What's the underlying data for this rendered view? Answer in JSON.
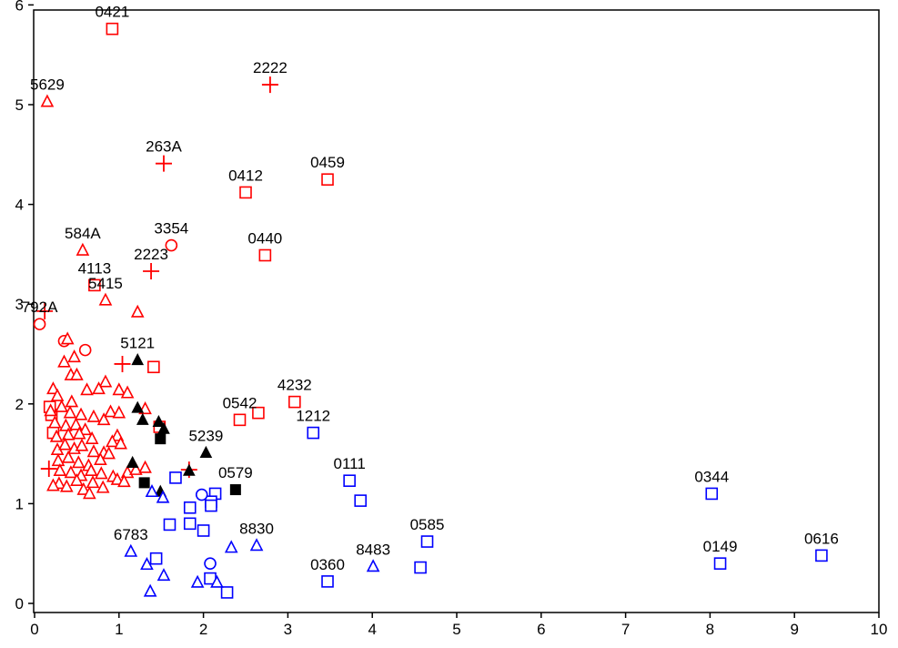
{
  "chart_data": {
    "type": "scatter",
    "title": "",
    "xlabel": "",
    "ylabel": "",
    "xlim": [
      0,
      10
    ],
    "ylim": [
      0,
      6
    ],
    "grid": false,
    "x_ticks": [
      0,
      1,
      2,
      3,
      4,
      5,
      6,
      7,
      8,
      9,
      10
    ],
    "y_ticks": [
      0,
      1,
      2,
      3,
      4,
      5,
      6
    ],
    "colors": {
      "red": "#ff0000",
      "blue": "#0000ff",
      "black": "#000000"
    },
    "series": [
      {
        "marker": "square",
        "color": "red",
        "points": [
          [
            0.92,
            5.76
          ],
          [
            1.41,
            2.37
          ],
          [
            1.48,
            1.77
          ],
          [
            2.5,
            4.12
          ],
          [
            3.47,
            4.25
          ],
          [
            2.73,
            3.49
          ],
          [
            0.71,
            3.19
          ],
          [
            2.43,
            1.84
          ],
          [
            2.65,
            1.91
          ],
          [
            3.08,
            2.02
          ],
          [
            0.22,
            1.71
          ],
          [
            0.2,
            1.89
          ],
          [
            0.18,
            1.97
          ]
        ],
        "labels": [
          "0421",
          "",
          "",
          "0412",
          "0459",
          "0440",
          "4113",
          "0542",
          "",
          "4232",
          "",
          "",
          ""
        ]
      },
      {
        "marker": "plus",
        "color": "red",
        "points": [
          [
            2.79,
            5.2
          ],
          [
            1.53,
            4.41
          ],
          [
            1.38,
            3.33
          ],
          [
            1.04,
            2.4
          ],
          [
            0.12,
            2.93
          ],
          [
            0.17,
            1.35
          ],
          [
            1.83,
            1.34
          ]
        ],
        "labels": [
          "2222",
          "263A",
          "2223",
          "",
          "",
          "",
          ""
        ]
      },
      {
        "marker": "circle",
        "color": "red",
        "points": [
          [
            1.62,
            3.59
          ],
          [
            0.06,
            2.8
          ],
          [
            0.6,
            2.54
          ],
          [
            0.35,
            2.63
          ]
        ],
        "labels": [
          "3354",
          "792A",
          "",
          ""
        ]
      },
      {
        "marker": "triangle",
        "color": "red",
        "points": [
          [
            0.15,
            5.03
          ],
          [
            0.57,
            3.54
          ],
          [
            0.84,
            3.04
          ],
          [
            1.22,
            2.92
          ],
          [
            0.39,
            2.65
          ],
          [
            0.35,
            2.42
          ],
          [
            0.47,
            2.47
          ],
          [
            0.43,
            2.29
          ],
          [
            0.22,
            2.15
          ],
          [
            0.27,
            2.08
          ],
          [
            0.5,
            2.29
          ],
          [
            0.62,
            2.14
          ],
          [
            0.84,
            2.22
          ],
          [
            0.76,
            2.15
          ],
          [
            1.0,
            2.14
          ],
          [
            1.1,
            2.11
          ],
          [
            0.32,
            1.97
          ],
          [
            0.44,
            2.02
          ],
          [
            0.19,
            1.93
          ],
          [
            0.42,
            1.91
          ],
          [
            0.55,
            1.89
          ],
          [
            0.7,
            1.87
          ],
          [
            0.82,
            1.84
          ],
          [
            0.9,
            1.92
          ],
          [
            1.0,
            1.91
          ],
          [
            1.31,
            1.95
          ],
          [
            0.24,
            1.81
          ],
          [
            0.37,
            1.78
          ],
          [
            0.49,
            1.79
          ],
          [
            0.6,
            1.74
          ],
          [
            0.26,
            1.67
          ],
          [
            0.4,
            1.69
          ],
          [
            0.53,
            1.7
          ],
          [
            0.68,
            1.65
          ],
          [
            0.98,
            1.68
          ],
          [
            0.27,
            1.54
          ],
          [
            0.36,
            1.59
          ],
          [
            0.47,
            1.55
          ],
          [
            0.56,
            1.58
          ],
          [
            0.7,
            1.52
          ],
          [
            0.82,
            1.51
          ],
          [
            0.92,
            1.62
          ],
          [
            1.02,
            1.6
          ],
          [
            0.28,
            1.43
          ],
          [
            0.4,
            1.46
          ],
          [
            0.52,
            1.41
          ],
          [
            0.64,
            1.38
          ],
          [
            0.78,
            1.44
          ],
          [
            0.88,
            1.5
          ],
          [
            0.3,
            1.33
          ],
          [
            0.43,
            1.31
          ],
          [
            0.55,
            1.28
          ],
          [
            0.67,
            1.33
          ],
          [
            0.79,
            1.3
          ],
          [
            0.93,
            1.27
          ],
          [
            1.1,
            1.31
          ],
          [
            1.2,
            1.34
          ],
          [
            1.31,
            1.36
          ],
          [
            0.29,
            1.2
          ],
          [
            0.38,
            1.17
          ],
          [
            0.5,
            1.23
          ],
          [
            0.58,
            1.14
          ],
          [
            0.69,
            1.21
          ],
          [
            0.81,
            1.16
          ],
          [
            0.98,
            1.24
          ],
          [
            1.06,
            1.22
          ],
          [
            0.22,
            1.18
          ],
          [
            0.65,
            1.1
          ]
        ],
        "labels": [
          "5629",
          "584A",
          "5415",
          "",
          "",
          "",
          "",
          "",
          "",
          "",
          "",
          "",
          "",
          "",
          "",
          "",
          "",
          "",
          "",
          "",
          "",
          "",
          "",
          "",
          "",
          "",
          "",
          "",
          "",
          "",
          "",
          "",
          "",
          "",
          "",
          "",
          "",
          "",
          "",
          "",
          "",
          "",
          "",
          "",
          "",
          "",
          "",
          "",
          "",
          "",
          "",
          "",
          "",
          "",
          "",
          "",
          "",
          "",
          "",
          "",
          "",
          "",
          "",
          "",
          "",
          "",
          ""
        ]
      },
      {
        "marker": "triangle-filled",
        "color": "black",
        "points": [
          [
            1.22,
            2.44
          ],
          [
            1.22,
            1.96
          ],
          [
            1.28,
            1.84
          ],
          [
            1.53,
            1.75
          ],
          [
            1.47,
            1.82
          ],
          [
            2.03,
            1.51
          ],
          [
            1.16,
            1.41
          ],
          [
            1.49,
            1.12
          ],
          [
            1.83,
            1.33
          ]
        ],
        "labels": [
          "5121",
          "",
          "",
          "",
          "",
          "5239",
          "",
          "",
          ""
        ]
      },
      {
        "marker": "square-filled",
        "color": "black",
        "points": [
          [
            1.49,
            1.65
          ],
          [
            2.38,
            1.14
          ],
          [
            1.3,
            1.21
          ]
        ],
        "labels": [
          "",
          "0579",
          ""
        ]
      },
      {
        "marker": "square",
        "color": "blue",
        "points": [
          [
            3.3,
            1.71
          ],
          [
            3.73,
            1.23
          ],
          [
            3.86,
            1.03
          ],
          [
            8.02,
            1.1
          ],
          [
            8.12,
            0.4
          ],
          [
            9.32,
            0.48
          ],
          [
            4.65,
            0.62
          ],
          [
            4.57,
            0.36
          ],
          [
            3.47,
            0.22
          ],
          [
            1.67,
            1.26
          ],
          [
            2.14,
            1.1
          ],
          [
            2.09,
            1.02
          ],
          [
            2.09,
            0.98
          ],
          [
            1.84,
            0.96
          ],
          [
            1.6,
            0.79
          ],
          [
            1.84,
            0.8
          ],
          [
            2.0,
            0.73
          ],
          [
            1.44,
            0.45
          ],
          [
            2.08,
            0.25
          ],
          [
            2.28,
            0.11
          ]
        ],
        "labels": [
          "1212",
          "0111",
          "",
          "0344",
          "0149",
          "0616",
          "0585",
          "",
          "0360",
          "",
          "",
          "",
          "",
          "",
          "",
          "",
          "",
          "",
          "",
          ""
        ]
      },
      {
        "marker": "circle",
        "color": "blue",
        "points": [
          [
            1.98,
            1.09
          ],
          [
            2.08,
            0.4
          ]
        ],
        "labels": [
          "",
          ""
        ]
      },
      {
        "marker": "triangle",
        "color": "blue",
        "points": [
          [
            1.39,
            1.12
          ],
          [
            1.52,
            1.06
          ],
          [
            1.14,
            0.52
          ],
          [
            1.33,
            0.39
          ],
          [
            1.53,
            0.28
          ],
          [
            1.37,
            0.12
          ],
          [
            1.93,
            0.21
          ],
          [
            2.16,
            0.21
          ],
          [
            2.33,
            0.56
          ],
          [
            2.63,
            0.58
          ],
          [
            4.01,
            0.37
          ]
        ],
        "labels": [
          "",
          "",
          "6783",
          "",
          "",
          "",
          "",
          "",
          "",
          "8830",
          "8483"
        ]
      }
    ]
  }
}
